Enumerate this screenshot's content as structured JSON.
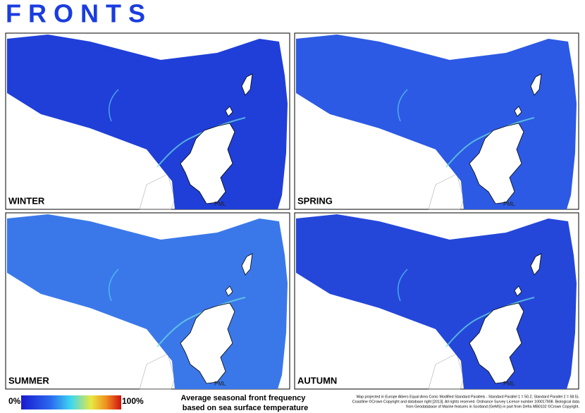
{
  "title": "FRONTS",
  "panels": [
    {
      "label": "WINTER",
      "credit": "PML"
    },
    {
      "label": "SPRING",
      "credit": "PML"
    },
    {
      "label": "SUMMER",
      "credit": "PML"
    },
    {
      "label": "AUTUMN",
      "credit": "PML"
    }
  ],
  "legend": {
    "min_label": "0%",
    "max_label": "100%",
    "title_lines": [
      "Average seasonal front frequency",
      "based on sea surface temperature"
    ]
  },
  "footnote": [
    "Map projected in Europe Albers Equal Area Conic Modified Standard Parallels - Standard Parallel 1 = 50.2; Standard Parallel 2 = 58.5).",
    "Coastline ©Crown Copyright and database right [2013]. All rights reserved. Ordnance Survey Licence number 100017908. Biological data",
    "from Geodatabase of Marine features in Scotland (GeMS) in part from Defra MB0102 ©Crown Copyright."
  ]
}
